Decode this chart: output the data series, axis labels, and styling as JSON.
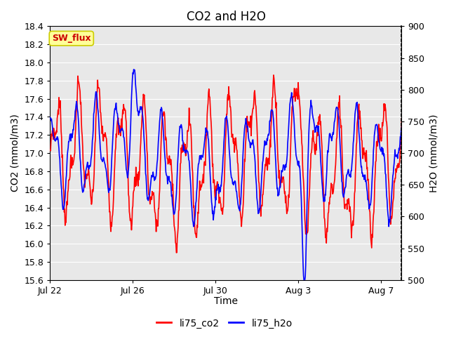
{
  "title": "CO2 and H2O",
  "xlabel": "Time",
  "ylabel_left": "CO2 (mmol/m3)",
  "ylabel_right": "H2O (mmol/m3)",
  "ylim_left": [
    15.6,
    18.4
  ],
  "ylim_right": [
    500,
    900
  ],
  "yticks_left": [
    15.6,
    15.8,
    16.0,
    16.2,
    16.4,
    16.6,
    16.8,
    17.0,
    17.2,
    17.4,
    17.6,
    17.8,
    18.0,
    18.2,
    18.4
  ],
  "yticks_right": [
    500,
    550,
    600,
    650,
    700,
    750,
    800,
    850,
    900
  ],
  "xtick_labels": [
    "Jul 22",
    "Jul 26",
    "Jul 30",
    "Aug 3",
    "Aug 7"
  ],
  "xtick_positions": [
    0,
    4,
    8,
    12,
    16
  ],
  "xlim": [
    0,
    17
  ],
  "color_co2": "#ff0000",
  "color_h2o": "#0000ff",
  "label_co2": "li75_co2",
  "label_h2o": "li75_h2o",
  "annotation_text": "SW_flux",
  "annotation_bg": "#ffff99",
  "annotation_border": "#cccc00",
  "fig_bg": "#ffffff",
  "plot_bg": "#e8e8e8",
  "grid_color": "#ffffff",
  "title_fontsize": 12,
  "axis_label_fontsize": 10,
  "tick_fontsize": 9,
  "legend_fontsize": 10,
  "linewidth": 1.2
}
